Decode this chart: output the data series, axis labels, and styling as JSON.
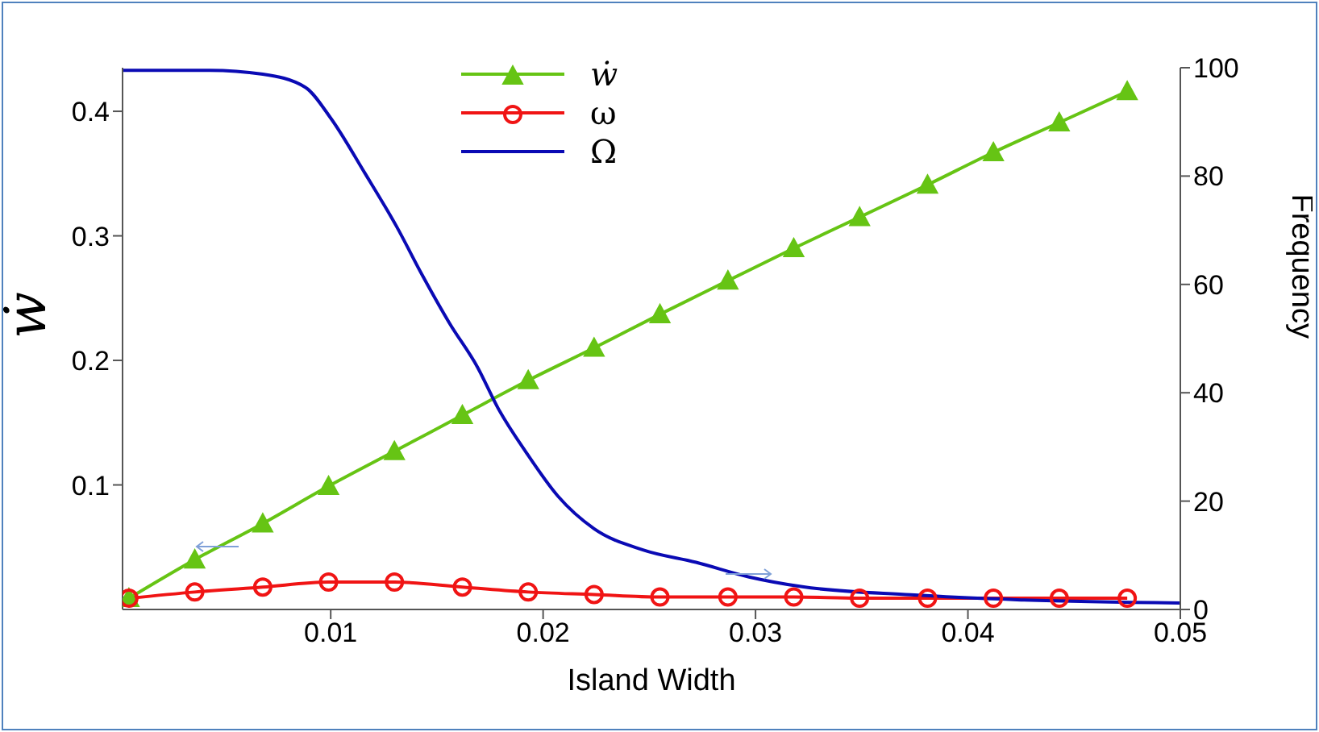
{
  "chart_data": {
    "type": "line",
    "xlabel": "Island Width",
    "ylabel": "ẇ",
    "y2label": "Frequency",
    "xlim": [
      0.0002,
      0.05
    ],
    "xticks": [
      0.01,
      0.02,
      0.03,
      0.04,
      0.05
    ],
    "ylim": [
      0,
      0.435
    ],
    "yticks": [
      0.1,
      0.2,
      0.3,
      0.4
    ],
    "y2lim": [
      0,
      100
    ],
    "y2ticks": [
      0,
      20,
      40,
      60,
      80,
      100
    ],
    "legend": "top",
    "line_style": "solid",
    "series": [
      {
        "name": "ẇ",
        "color": "#66c414",
        "marker": "triangle",
        "x": [
          0.0005,
          0.0036,
          0.0068,
          0.0099,
          0.013,
          0.0162,
          0.0193,
          0.0224,
          0.0255,
          0.0287,
          0.0318,
          0.0349,
          0.0381,
          0.0412,
          0.0443,
          0.0475
        ],
        "values": [
          0.009,
          0.04,
          0.069,
          0.099,
          0.127,
          0.156,
          0.184,
          0.21,
          0.237,
          0.264,
          0.29,
          0.315,
          0.341,
          0.367,
          0.391,
          0.416
        ]
      },
      {
        "name": "ω",
        "color": "#f01414",
        "marker": "circle",
        "x": [
          0.0005,
          0.0036,
          0.0068,
          0.0099,
          0.013,
          0.0162,
          0.0193,
          0.0224,
          0.0255,
          0.0287,
          0.0318,
          0.0349,
          0.0381,
          0.0412,
          0.0443,
          0.0475
        ],
        "values": [
          0.009,
          0.014,
          0.018,
          0.022,
          0.022,
          0.018,
          0.014,
          0.012,
          0.01,
          0.01,
          0.01,
          0.009,
          0.009,
          0.009,
          0.009,
          0.009
        ]
      },
      {
        "name": "Ω",
        "color": "#0a0ab4",
        "marker": "none",
        "axis": "y2",
        "x": [
          0.0002,
          0.0043,
          0.0068,
          0.0088,
          0.01,
          0.0116,
          0.0131,
          0.0143,
          0.0156,
          0.0169,
          0.0179,
          0.0192,
          0.0207,
          0.0224,
          0.0247,
          0.0272,
          0.0297,
          0.0322,
          0.0373,
          0.0423,
          0.05
        ],
        "values": [
          99.5,
          99.5,
          98.8,
          96.4,
          90.7,
          80.6,
          70.7,
          61.8,
          52.8,
          44.8,
          37,
          29,
          20.9,
          14.9,
          11,
          8.7,
          6,
          4.2,
          2.7,
          1.8,
          1.2
        ]
      }
    ]
  }
}
